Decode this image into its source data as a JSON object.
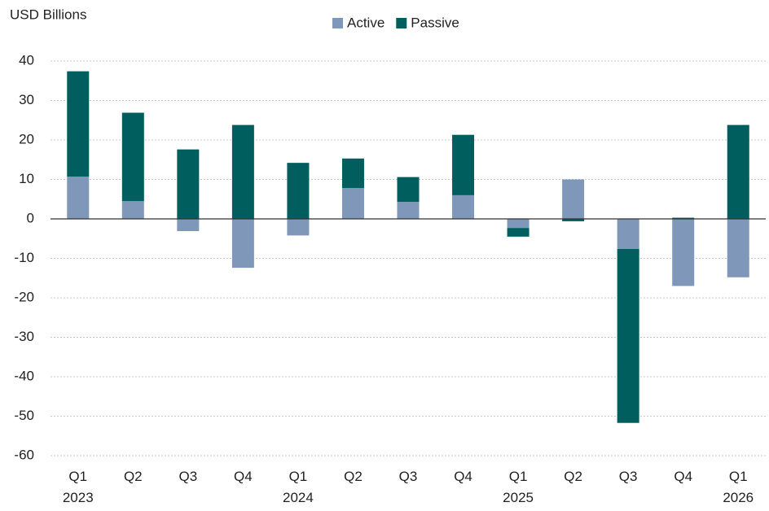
{
  "chart_data": {
    "type": "stacked_bar",
    "y_axis_label": "USD Billions",
    "categories": [
      "Q1 2023",
      "Q2",
      "Q3",
      "Q4",
      "Q1 2024",
      "Q2",
      "Q3",
      "Q4",
      "Q1 2025",
      "Q2",
      "Q3",
      "Q4",
      "Q1 2026"
    ],
    "series": [
      {
        "name": "Active",
        "color": "#7f98b9",
        "values": [
          10.7,
          4.5,
          -3.1,
          -12.4,
          -4.2,
          7.8,
          4.3,
          6.0,
          -2.3,
          10.0,
          -7.6,
          -17.0,
          -14.8
        ]
      },
      {
        "name": "Passive",
        "color": "#005f5e",
        "values": [
          26.7,
          22.4,
          17.6,
          23.8,
          14.2,
          7.5,
          6.3,
          15.3,
          -2.2,
          -0.6,
          -44.1,
          0.3,
          23.8
        ]
      }
    ],
    "ylim": [
      -64,
      42
    ],
    "yticks": [
      -60,
      -50,
      -40,
      -30,
      -20,
      -10,
      0,
      10,
      20,
      30,
      40
    ],
    "grid": true,
    "legend": "top"
  }
}
